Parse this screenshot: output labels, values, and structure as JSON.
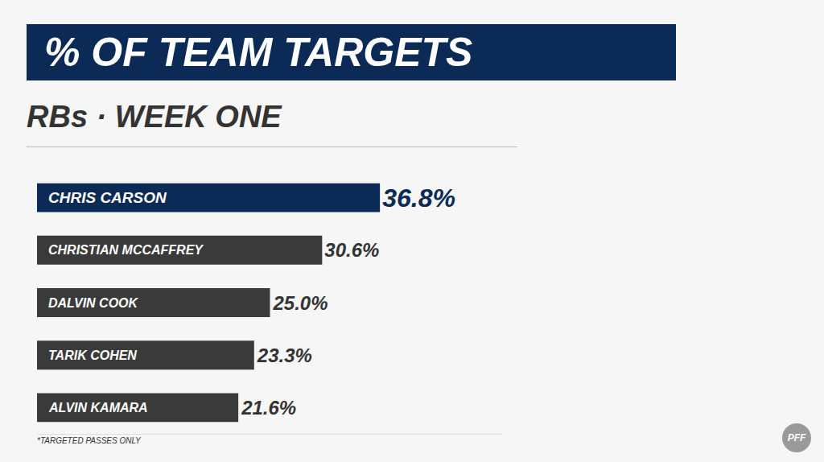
{
  "chart_data": {
    "type": "bar",
    "orientation": "horizontal",
    "title": "% OF TEAM TARGETS",
    "subtitle": "RBs · WEEK ONE",
    "footnote": "*TARGETED PASSES ONLY",
    "logo": "PFF",
    "categories": [
      "CHRIS CARSON",
      "CHRISTIAN MCCAFFREY",
      "DALVIN COOK",
      "TARIK COHEN",
      "ALVIN KAMARA"
    ],
    "values": [
      36.8,
      30.6,
      25.0,
      23.3,
      21.6
    ],
    "value_labels": [
      "36.8%",
      "30.6%",
      "25.0%",
      "23.3%",
      "21.6%"
    ],
    "colors": [
      "#0b2a55",
      "#3a3a3a",
      "#3a3a3a",
      "#3a3a3a",
      "#3a3a3a"
    ],
    "data_labels": true,
    "tick_labels": false,
    "grid": false,
    "xlim": [
      0,
      50
    ]
  }
}
